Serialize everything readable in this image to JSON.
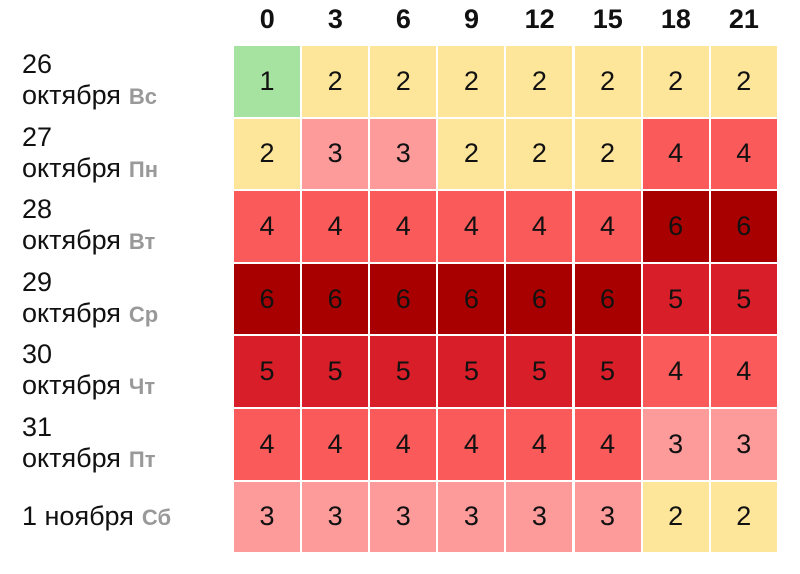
{
  "chart_data": {
    "type": "heatmap",
    "x": [
      "0",
      "3",
      "6",
      "9",
      "12",
      "15",
      "18",
      "21"
    ],
    "rows": [
      {
        "date_line1": "26",
        "date_line2": "октября",
        "dow": "Вс",
        "values": [
          1,
          2,
          2,
          2,
          2,
          2,
          2,
          2
        ]
      },
      {
        "date_line1": "27",
        "date_line2": "октября",
        "dow": "Пн",
        "values": [
          2,
          3,
          3,
          2,
          2,
          2,
          4,
          4
        ]
      },
      {
        "date_line1": "28",
        "date_line2": "октября",
        "dow": "Вт",
        "values": [
          4,
          4,
          4,
          4,
          4,
          4,
          6,
          6
        ]
      },
      {
        "date_line1": "29",
        "date_line2": "октября",
        "dow": "Ср",
        "values": [
          6,
          6,
          6,
          6,
          6,
          6,
          5,
          5
        ]
      },
      {
        "date_line1": "30",
        "date_line2": "октября",
        "dow": "Чт",
        "values": [
          5,
          5,
          5,
          5,
          5,
          5,
          4,
          4
        ]
      },
      {
        "date_line1": "31",
        "date_line2": "октября",
        "dow": "Пт",
        "values": [
          4,
          4,
          4,
          4,
          4,
          4,
          3,
          3
        ]
      },
      {
        "date_line1": "",
        "date_line2": "1 ноября",
        "dow": "Сб",
        "values": [
          3,
          3,
          3,
          3,
          3,
          3,
          2,
          2
        ]
      }
    ],
    "color_scale": {
      "1": "#a6e3a0",
      "2": "#fde59a",
      "3": "#fd9a9a",
      "4": "#fb5a5a",
      "5": "#d81e28",
      "6": "#a80000"
    }
  }
}
